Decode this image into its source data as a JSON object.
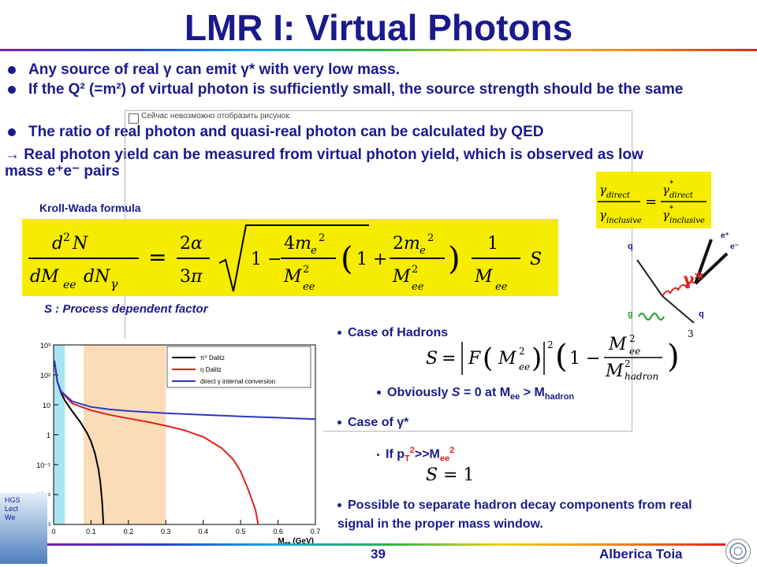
{
  "slide": {
    "title": "LMR I: Virtual Photons",
    "bullets": [
      "Any source of real γ can emit γ* with very low mass.",
      "If the Q² (=m²) of virtual photon is sufficiently small, the source strength should be the same",
      "The ratio of real photon and quasi-real photon can be calculated by QED",
      "→ Real photon yield can be measured from virtual photon yield, which is observed as low mass e⁺e⁻ pairs"
    ],
    "popup_text": "Сейчас невозможно отобразить рисунок.",
    "kroll_wada_label": "Kroll-Wada formula",
    "s_note": "S : Process dependent factor",
    "right": {
      "case_hadrons": "Case of Hadrons",
      "obviously_prefix": "Obviously ",
      "obviously_math": "S",
      "obviously_rest": " = 0 at M",
      "obviously_sub1": "ee",
      "obviously_gt": " > M",
      "obviously_sub2": "hadron",
      "case_gamma": "Case of γ*",
      "if_prefix": "If p",
      "if_sub": "T",
      "if_sup": "2",
      "if_mid": ">>M",
      "if_sub2": "ee",
      "if_sup2": "2",
      "possible": "Possible to separate hadron decay components from real signal in the proper mass window."
    },
    "feynman": {
      "q_top": "q",
      "g_bottom": "g",
      "q_bottom": "q",
      "e_plus": "e⁺",
      "e_minus": "e⁻",
      "gamma_star": "γ*"
    },
    "footer": {
      "page": "39",
      "author": "Alberica Toia",
      "hgs_l1": "HGS",
      "hgs_l2": "Lect",
      "hgs_l3": "We"
    }
  },
  "chart_data": {
    "type": "line",
    "xlabel": "M",
    "xlabel_sub": "ee",
    "xlabel_unit": "(GeV)",
    "xlim": [
      0,
      0.7
    ],
    "ylim": [
      0.001,
      1000
    ],
    "log_y": true,
    "x_ticks": [
      "0",
      "0.1",
      "0.2",
      "0.3",
      "0.4",
      "0.5",
      "0.6",
      "0.7"
    ],
    "y_ticks": [
      "10⁻³",
      "10⁻²",
      "10⁻¹",
      "1",
      "10",
      "10²",
      "10³"
    ],
    "legend_position": "top-right",
    "shaded_regions": [
      {
        "from": 0.0,
        "to": 0.03,
        "color": "#a8e4f4"
      },
      {
        "from": 0.08,
        "to": 0.3,
        "color": "#fbdcb8"
      }
    ],
    "series": [
      {
        "name": "π⁰ Dalitz",
        "color": "#000000",
        "x": [
          0.002,
          0.01,
          0.02,
          0.03,
          0.05,
          0.07,
          0.09,
          0.1,
          0.11,
          0.12,
          0.125,
          0.13,
          0.133
        ],
        "y": [
          300,
          60,
          25,
          14,
          6,
          2.8,
          1.1,
          0.6,
          0.25,
          0.07,
          0.025,
          0.005,
          0.001
        ]
      },
      {
        "name": "η Dalitz",
        "color": "#e0201a",
        "x": [
          0.002,
          0.01,
          0.02,
          0.05,
          0.1,
          0.15,
          0.2,
          0.25,
          0.3,
          0.35,
          0.4,
          0.45,
          0.48,
          0.5,
          0.52,
          0.54,
          0.547
        ],
        "y": [
          300,
          60,
          27,
          11,
          6.5,
          4.6,
          3.5,
          2.7,
          2.0,
          1.4,
          0.85,
          0.35,
          0.15,
          0.06,
          0.015,
          0.003,
          0.001
        ]
      },
      {
        "name": "direct γ internal conversion",
        "color": "#2a36c8",
        "x": [
          0.002,
          0.01,
          0.02,
          0.05,
          0.1,
          0.15,
          0.2,
          0.3,
          0.4,
          0.5,
          0.6,
          0.7
        ],
        "y": [
          300,
          60,
          28,
          13,
          8.5,
          7.0,
          6.2,
          5.2,
          4.6,
          4.1,
          3.7,
          3.3
        ]
      }
    ]
  },
  "colors": {
    "text": "#1a1a8c",
    "formula_bg": "#f5ec00"
  }
}
